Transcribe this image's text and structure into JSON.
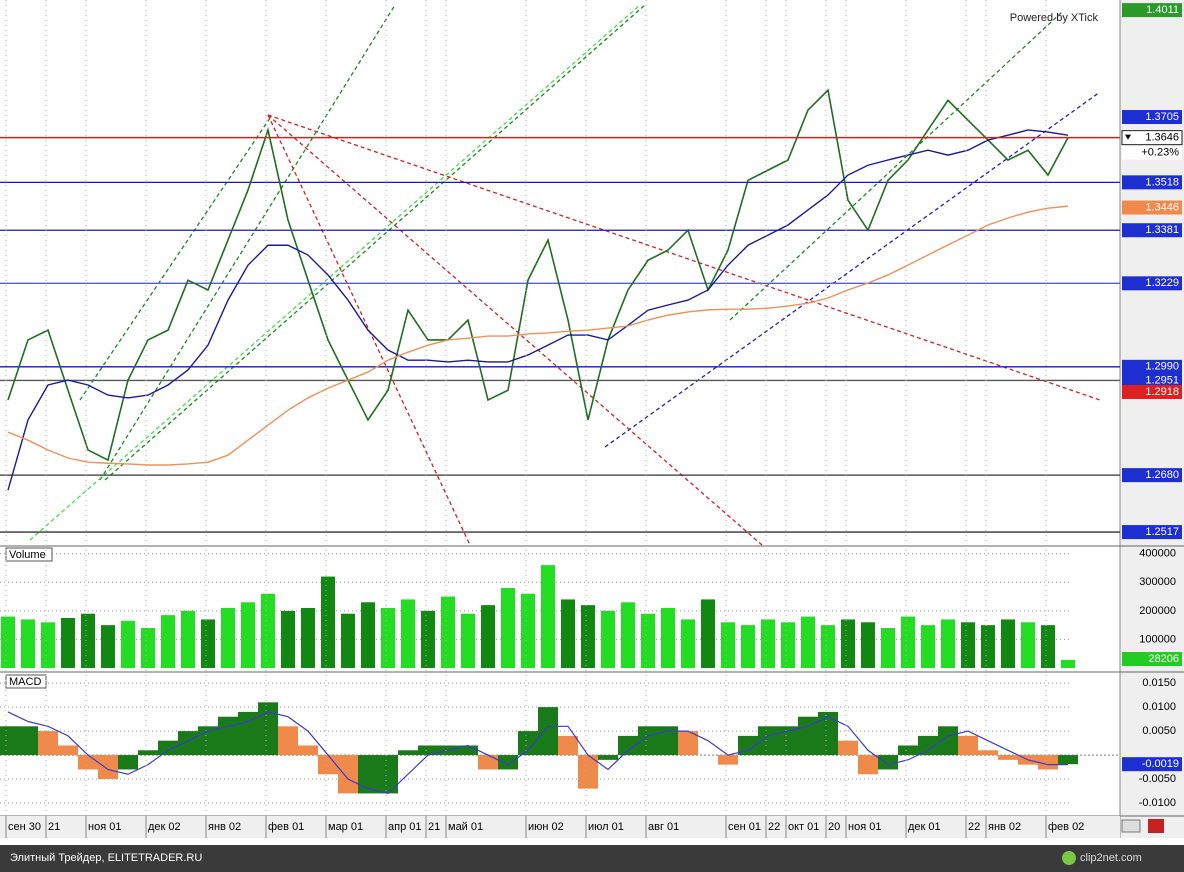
{
  "credit": "Powered by XTick",
  "footer": "Элитный Трейдер, ELITETRADER.RU",
  "watermark": "clip2net.com",
  "chart_data": [
    {
      "type": "line",
      "ylim": [
        1.248,
        1.404
      ],
      "change": "+0.23%",
      "last_line_color": "#d42020",
      "series": [
        {
          "name": "Price",
          "color": "#1f6f1f",
          "values": [
            1.2895,
            1.3067,
            1.3095,
            1.2923,
            1.2752,
            1.2723,
            1.2952,
            1.3067,
            1.3095,
            1.3238,
            1.321,
            1.3353,
            1.3496,
            1.3668,
            1.341,
            1.3238,
            1.3067,
            1.2952,
            1.2838,
            1.2923,
            1.3152,
            1.3067,
            1.3067,
            1.3124,
            1.2895,
            1.2923,
            1.3238,
            1.3353,
            1.3124,
            1.2838,
            1.3067,
            1.321,
            1.3295,
            1.3324,
            1.3381,
            1.321,
            1.3324,
            1.3524,
            1.3553,
            1.3582,
            1.3725,
            1.3782,
            1.3467,
            1.3381,
            1.3524,
            1.3582,
            1.3668,
            1.3753,
            1.3696,
            1.3639,
            1.3582,
            1.361,
            1.3539,
            1.3646
          ]
        },
        {
          "name": "MA fast",
          "color": "#1a1aa0",
          "values": [
            1.2637,
            1.2838,
            1.2938,
            1.2952,
            1.2938,
            1.2909,
            1.2901,
            1.2909,
            1.2938,
            1.2981,
            1.3052,
            1.3181,
            1.3281,
            1.3338,
            1.3338,
            1.331,
            1.3253,
            1.3181,
            1.3095,
            1.3038,
            1.3009,
            1.3009,
            1.3004,
            1.3009,
            1.3004,
            1.3004,
            1.3024,
            1.3052,
            1.3081,
            1.3081,
            1.3067,
            1.3109,
            1.3152,
            1.3167,
            1.3181,
            1.321,
            1.3281,
            1.3338,
            1.3367,
            1.3396,
            1.3439,
            1.3482,
            1.3539,
            1.3567,
            1.3582,
            1.3596,
            1.361,
            1.3596,
            1.361,
            1.3639,
            1.3653,
            1.3668,
            1.3662,
            1.3653
          ]
        },
        {
          "name": "MA slow",
          "color": "#f0905a",
          "values": [
            1.2803,
            1.278,
            1.2752,
            1.2729,
            1.2717,
            1.2714,
            1.2712,
            1.2709,
            1.2709,
            1.2712,
            1.2717,
            1.2737,
            1.278,
            1.2823,
            1.2866,
            1.2901,
            1.2929,
            1.2952,
            1.2975,
            1.3009,
            1.3032,
            1.3052,
            1.3067,
            1.3072,
            1.3078,
            1.3078,
            1.3084,
            1.3087,
            1.3092,
            1.3095,
            1.3101,
            1.3107,
            1.3124,
            1.3138,
            1.3147,
            1.3153,
            1.3155,
            1.3155,
            1.3158,
            1.3164,
            1.3172,
            1.3187,
            1.321,
            1.323,
            1.3253,
            1.3281,
            1.331,
            1.3339,
            1.3367,
            1.3396,
            1.3416,
            1.3433,
            1.3444,
            1.345
          ]
        }
      ],
      "levels": [
        {
          "value": 1.4011,
          "label_color": "#2a9a2a"
        },
        {
          "value": 1.3705,
          "label_color": "#1d2fd0"
        },
        {
          "value": 1.3518,
          "label_color": "#1d2fd0",
          "line_color": "#1a1ab0"
        },
        {
          "value": 1.3446,
          "label_color": "#f08a4a"
        },
        {
          "value": 1.3381,
          "label_color": "#1d2fd0",
          "line_color": "#1a1ab0"
        },
        {
          "value": 1.3229,
          "label_color": "#1d2fd0",
          "line_color": "#5060d0"
        },
        {
          "value": 1.299,
          "label": "1.2990",
          "label_color": "#1d2fd0",
          "line_color": "#1a1ab0"
        },
        {
          "value": 1.2951,
          "label_color": "#1d2fd0",
          "line_color": "#555555"
        },
        {
          "value": 1.2918,
          "label_color": "#e02020"
        },
        {
          "value": 1.268,
          "label": "1.2680",
          "label_color": "#1d2fd0",
          "line_color": "#333333"
        },
        {
          "value": 1.2517,
          "label_color": "#1d2fd0",
          "line_color": "#333333"
        }
      ]
    },
    {
      "type": "bar",
      "title": "Volume",
      "ylim": [
        0,
        420000
      ],
      "yticks": [
        100000,
        200000,
        300000,
        400000
      ],
      "colors": [
        "#22dd22",
        "#118811"
      ],
      "last_color": "#22cc22",
      "values": [
        180000,
        170000,
        160000,
        175000,
        190000,
        150000,
        165000,
        140000,
        185000,
        200000,
        170000,
        210000,
        230000,
        260000,
        200000,
        210000,
        320000,
        190000,
        230000,
        210000,
        240000,
        200000,
        250000,
        190000,
        220000,
        280000,
        260000,
        360000,
        240000,
        220000,
        200000,
        230000,
        190000,
        210000,
        170000,
        240000,
        160000,
        150000,
        170000,
        160000,
        180000,
        150000,
        170000,
        160000,
        140000,
        180000,
        150000,
        170000,
        160000,
        150000,
        170000,
        160000,
        150000,
        28206
      ]
    },
    {
      "type": "histogram-line",
      "title": "MACD",
      "ylim": [
        -0.0125,
        0.0167
      ],
      "yticks": [
        {
          "value": -0.01,
          "label": "-0.0100"
        },
        {
          "value": -0.005,
          "label": "-0.0050"
        },
        {
          "value": 0.005,
          "label": "0.0050"
        },
        {
          "value": 0.01,
          "label": "0.0100"
        },
        {
          "value": 0.015,
          "label": "0.0150"
        }
      ],
      "colors": [
        "#1a7a1a",
        "#f08a4a"
      ],
      "last_color": "#1d2fd0",
      "categories": [
        "сен 30",
        null,
        "21",
        null,
        "ноя 01",
        null,
        null,
        "дек 02",
        null,
        null,
        "янв 02",
        null,
        null,
        "фев 01",
        null,
        null,
        "мар 01",
        null,
        null,
        "апр 01",
        null,
        "21",
        "май 01",
        null,
        null,
        null,
        "июн 02",
        null,
        null,
        "июл 01",
        null,
        null,
        "авг 01",
        null,
        null,
        null,
        "сен 01",
        null,
        "22",
        "окт 01",
        null,
        "20",
        "ноя 01",
        null,
        null,
        "дек 01",
        null,
        null,
        "22",
        "янв 02",
        null,
        null,
        "фев 02",
        null
      ],
      "series": [
        {
          "name": "Histogram",
          "values": [
            0.006,
            0.006,
            0.005,
            0.002,
            -0.003,
            -0.005,
            -0.003,
            0.001,
            0.003,
            0.005,
            0.006,
            0.008,
            0.009,
            0.011,
            0.006,
            0.002,
            -0.004,
            -0.008,
            -0.008,
            -0.008,
            0.001,
            0.002,
            0.002,
            0.002,
            -0.003,
            -0.003,
            0.005,
            0.01,
            0.004,
            -0.007,
            -0.001,
            0.004,
            0.006,
            0.006,
            0.005,
            0.0,
            -0.002,
            0.004,
            0.006,
            0.006,
            0.008,
            0.009,
            0.003,
            -0.004,
            -0.003,
            0.002,
            0.004,
            0.006,
            0.004,
            0.001,
            -0.001,
            -0.002,
            -0.003,
            -0.0019
          ]
        },
        {
          "name": "Signal",
          "color": "#3a3ad0",
          "values": [
            0.009,
            0.007,
            0.006,
            0.004,
            0.0,
            -0.003,
            -0.004,
            -0.002,
            0.001,
            0.003,
            0.005,
            0.006,
            0.007,
            0.009,
            0.008,
            0.005,
            0.0,
            -0.005,
            -0.007,
            -0.008,
            -0.004,
            0.0,
            0.001,
            0.002,
            0.0,
            -0.002,
            0.001,
            0.006,
            0.006,
            0.0,
            -0.003,
            0.001,
            0.004,
            0.005,
            0.005,
            0.003,
            0.0,
            0.001,
            0.004,
            0.005,
            0.006,
            0.008,
            0.006,
            0.001,
            -0.002,
            -0.001,
            0.001,
            0.004,
            0.005,
            0.003,
            0.001,
            -0.001,
            -0.002,
            -0.002
          ]
        }
      ]
    }
  ]
}
